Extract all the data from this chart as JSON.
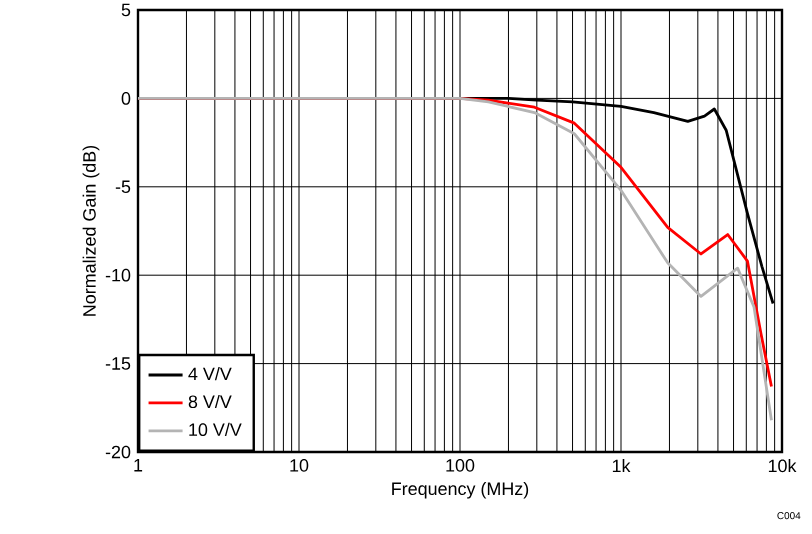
{
  "chart_data": {
    "type": "line",
    "xlabel": "Frequency (MHz)",
    "ylabel": "Normalized Gain (dB)",
    "log": "x",
    "grid": true,
    "legend": "bottom left",
    "xlim": [
      1,
      10000
    ],
    "ylim": [
      -20,
      5
    ],
    "xticks": [
      1,
      10,
      100,
      {
        "value": 1000,
        "label": "1k"
      },
      {
        "value": 10000,
        "label": "10k"
      }
    ],
    "yticks": [
      -20,
      -15,
      -10,
      -5,
      0,
      5
    ],
    "annotations": [
      "C004"
    ],
    "series": [
      {
        "name": "4 V/V",
        "color": "#000000",
        "x": [
          1,
          10,
          100,
          200,
          300,
          500,
          1000,
          1600,
          2600,
          3300,
          3800,
          4500,
          6100,
          7500,
          8800
        ],
        "values": [
          0,
          0,
          0,
          0,
          -0.1,
          -0.2,
          -0.45,
          -0.8,
          -1.3,
          -1.0,
          -0.6,
          -1.8,
          -6.5,
          -9.5,
          -11.6
        ]
      },
      {
        "name": "8 V/V",
        "color": "#ff0000",
        "x": [
          1,
          10,
          100,
          150,
          290,
          513,
          1000,
          1950,
          3140,
          4600,
          6100,
          7400,
          8600
        ],
        "values": [
          0,
          0,
          0,
          -0.1,
          -0.5,
          -1.4,
          -3.9,
          -7.3,
          -8.8,
          -7.7,
          -9.2,
          -13.3,
          -16.3
        ]
      },
      {
        "name": "10 V/V",
        "color": "#b4b4b4",
        "x": [
          1,
          10,
          100,
          150,
          290,
          513,
          1000,
          1950,
          3140,
          5300,
          6700,
          8600
        ],
        "values": [
          0,
          0,
          0,
          -0.2,
          -0.8,
          -2.0,
          -5.2,
          -9.3,
          -11.2,
          -9.6,
          -11.8,
          -18.2
        ]
      }
    ]
  }
}
